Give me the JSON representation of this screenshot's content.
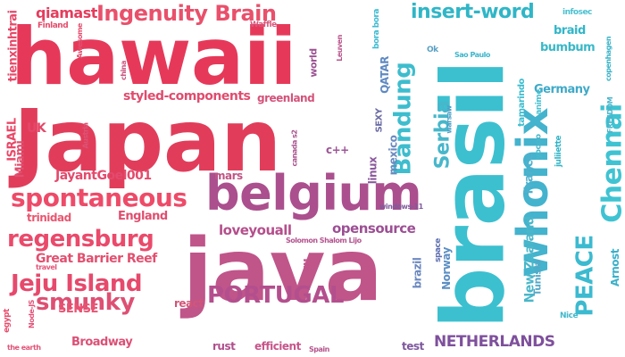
{
  "colors": {
    "red": "#e8375a",
    "pink": "#e64d6e",
    "rose": "#d6557a",
    "mauve": "#b04f8a",
    "purple": "#8a4f9a",
    "plum": "#6b4c9a",
    "teal": "#2fb8c8",
    "cyan": "#3ccad8",
    "blue": "#4aa5c8"
  },
  "words": [
    {
      "text": "hawaii",
      "color": "#e6395a"
    },
    {
      "text": "Japan",
      "color": "#e13d5b"
    },
    {
      "text": "brasil",
      "color": "#3cc0d0"
    },
    {
      "text": "java",
      "color": "#c0558a"
    },
    {
      "text": "belgium",
      "color": "#ab4f8e"
    },
    {
      "text": "whonix",
      "color": "#44b3cd"
    },
    {
      "text": "Ingenuity Brain",
      "color": "#e9506b"
    },
    {
      "text": "spontaneous",
      "color": "#ee4b69"
    },
    {
      "text": "regensburg",
      "color": "#ea4a6b"
    },
    {
      "text": "Jeju Island",
      "color": "#e6496c"
    },
    {
      "text": "smunky",
      "color": "#de4f73"
    },
    {
      "text": "PORTUGAL",
      "color": "#b44f8e"
    },
    {
      "text": "insert-word",
      "color": "#2fb6c7"
    },
    {
      "text": "Bandung",
      "color": "#3dbdce"
    },
    {
      "text": "Serbia",
      "color": "#47b7cb"
    },
    {
      "text": "Chennai",
      "color": "#3fc3d2"
    },
    {
      "text": "PEACE",
      "color": "#3bbad0"
    },
    {
      "text": "NETHERLANDS",
      "color": "#7e509c"
    },
    {
      "text": "opensource",
      "color": "#9c4f94"
    },
    {
      "text": "loveyouall",
      "color": "#b54f8c"
    },
    {
      "text": "Great Barrier Reef",
      "color": "#e34f6f"
    },
    {
      "text": "styled-components",
      "color": "#e04c6e"
    },
    {
      "text": "qiamast",
      "color": "#e53c5d"
    },
    {
      "text": "JayantGoel001",
      "color": "#e34a6d"
    },
    {
      "text": "tienxinhtrai",
      "color": "#e64a6a"
    },
    {
      "text": "greenland",
      "color": "#d4527a"
    },
    {
      "text": "ISRAEL",
      "color": "#ea4767"
    },
    {
      "text": "UK",
      "color": "#e64668"
    },
    {
      "text": "Miami",
      "color": "#e0506f"
    },
    {
      "text": "trinidad",
      "color": "#e9566f"
    },
    {
      "text": "England",
      "color": "#e04e6f"
    },
    {
      "text": "SENSE",
      "color": "#e95371"
    },
    {
      "text": "react",
      "color": "#d25578"
    },
    {
      "text": "Broadway",
      "color": "#dc5075"
    },
    {
      "text": "rust",
      "color": "#b04f8c"
    },
    {
      "text": "efficient",
      "color": "#c7558a"
    },
    {
      "text": "mars",
      "color": "#c05384"
    },
    {
      "text": "c++",
      "color": "#9c5596"
    },
    {
      "text": "linux",
      "color": "#8a5a9c"
    },
    {
      "text": "mexico",
      "color": "#6a8ac0"
    },
    {
      "text": "France",
      "color": "#4fb1cd"
    },
    {
      "text": "Germany",
      "color": "#3fa9c8"
    },
    {
      "text": "bumbum",
      "color": "#38b8c8"
    },
    {
      "text": "braid",
      "color": "#30b6c9"
    },
    {
      "text": "New Zealand",
      "color": "#4ab7c9"
    },
    {
      "text": "Norway",
      "color": "#5c8fc3"
    },
    {
      "text": "Tunisia",
      "color": "#54a8c7"
    },
    {
      "text": "brazil",
      "color": "#6b88c0"
    },
    {
      "text": "QATAR",
      "color": "#5e89c2"
    },
    {
      "text": "test",
      "color": "#7e589e"
    },
    {
      "text": "Arnost",
      "color": "#3bb0c9"
    },
    {
      "text": "Waffle",
      "color": "#d9577c"
    },
    {
      "text": "Finland",
      "color": "#e54c6c"
    },
    {
      "text": "Awesome",
      "color": "#e44f6f"
    },
    {
      "text": "china",
      "color": "#c9567f"
    },
    {
      "text": "Austria",
      "color": "#dd5374"
    },
    {
      "text": "world",
      "color": "#9b5292"
    },
    {
      "text": "Leuven",
      "color": "#b9548b"
    },
    {
      "text": "canada s2",
      "color": "#a9528e"
    },
    {
      "text": "SEXY",
      "color": "#6b6ca3"
    },
    {
      "text": "tamarindo",
      "color": "#3bbccf"
    },
    {
      "text": "anime",
      "color": "#4ac1d1"
    },
    {
      "text": "infosec",
      "color": "#4ac1d1"
    },
    {
      "text": "copenhagen",
      "color": "#3ab3c8"
    },
    {
      "text": "FREEDOM",
      "color": "#4ab5cb"
    },
    {
      "text": "Nice",
      "color": "#42b8cb"
    },
    {
      "text": "yoooo",
      "color": "#48b7ca"
    },
    {
      "text": "juliiette",
      "color": "#33b4c7"
    },
    {
      "text": "Sao Paulo",
      "color": "#3db6ca"
    },
    {
      "text": "Ok",
      "color": "#5aa0c3"
    },
    {
      "text": "bora bora",
      "color": "#3fbbd1"
    },
    {
      "text": "warsaw",
      "color": "#4da0c6"
    },
    {
      "text": "windows-11",
      "color": "#7f5b9b"
    },
    {
      "text": "space",
      "color": "#5f6fb0"
    },
    {
      "text": "Solomon Shalom Lijo",
      "color": "#b55590"
    },
    {
      "text": "VIM",
      "color": "#c0558a"
    },
    {
      "text": "travel",
      "color": "#e5577a"
    },
    {
      "text": "Node-JS",
      "color": "#e35277"
    },
    {
      "text": "egypt",
      "color": "#e64e6d"
    },
    {
      "text": "the earth",
      "color": "#e25679"
    },
    {
      "text": "Spain",
      "color": "#b5558c"
    }
  ]
}
